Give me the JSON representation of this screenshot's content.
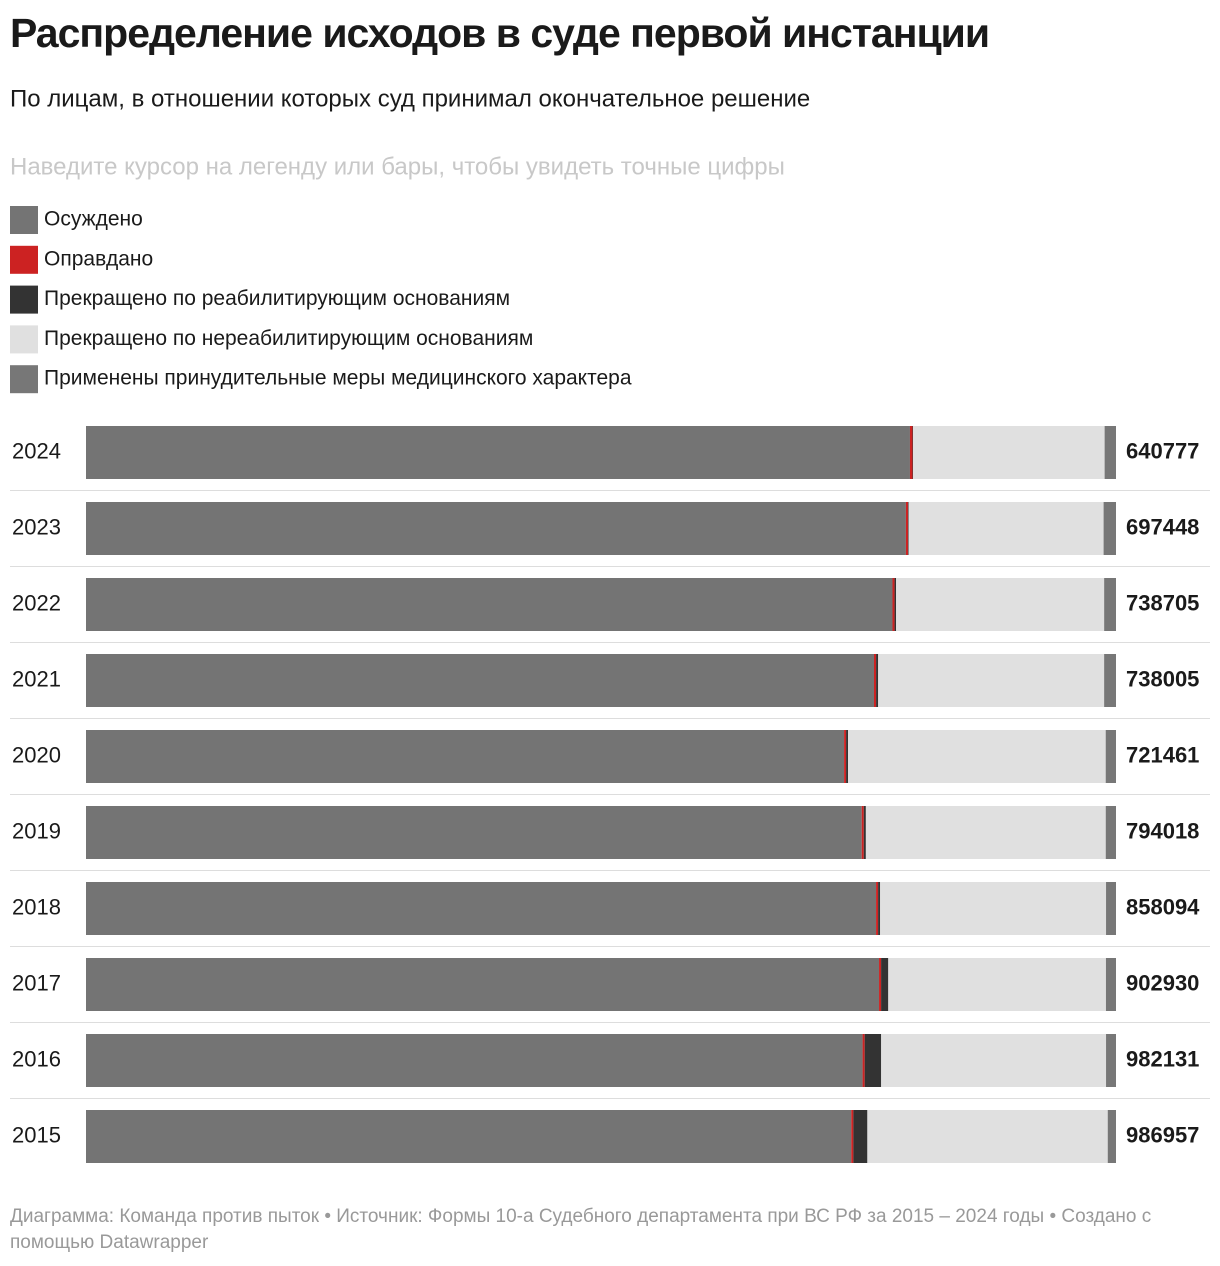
{
  "chart_data": {
    "type": "stacked_bar",
    "title": "Распределение исходов в суде первой инстанции",
    "subtitle": "По лицам, в отношении которых суд принимал окончательное решение",
    "note": "Наведите курсор на легенду или бары, чтобы увидеть точные цифры",
    "categories": [
      "2024",
      "2023",
      "2022",
      "2021",
      "2020",
      "2019",
      "2018",
      "2017",
      "2016",
      "2015"
    ],
    "series": [
      {
        "name": "Осуждено",
        "color": "#747474",
        "values": [
          512600,
          555200,
          578400,
          564600,
          531000,
          598000,
          658200,
          695200,
          740500,
          733300
        ]
      },
      {
        "name": "Оправдано",
        "color": "#cc2222",
        "values": [
          1600,
          1400,
          1500,
          1500,
          1400,
          1600,
          1700,
          1800,
          2000,
          2000
        ]
      },
      {
        "name": "Прекращено по реабилитирующим основаниям",
        "color": "#333333",
        "values": [
          300,
          350,
          1100,
          1500,
          1400,
          1600,
          1700,
          6300,
          15700,
          13400
        ]
      },
      {
        "name": "Прекращено по нереабилитирующим основаниям",
        "color": "#e0e0e0",
        "values": [
          119200,
          132098,
          149205,
          161905,
          180461,
          184918,
          188194,
          190830,
          214431,
          230357
        ]
      },
      {
        "name": "Применены принудительные меры медицинского характера",
        "color": "#777777",
        "values": [
          7077,
          8400,
          8500,
          8500,
          7200,
          7900,
          8300,
          8800,
          9500,
          7900
        ]
      }
    ],
    "totals": [
      640777,
      697448,
      738705,
      738005,
      721461,
      794018,
      858094,
      902930,
      982131,
      986957
    ],
    "source": "Диаграмма: Команда против пыток • Источник: Формы 10-а Судебного департамента при ВС РФ за 2015 – 2024 годы • Создано с помощью Datawrapper"
  }
}
